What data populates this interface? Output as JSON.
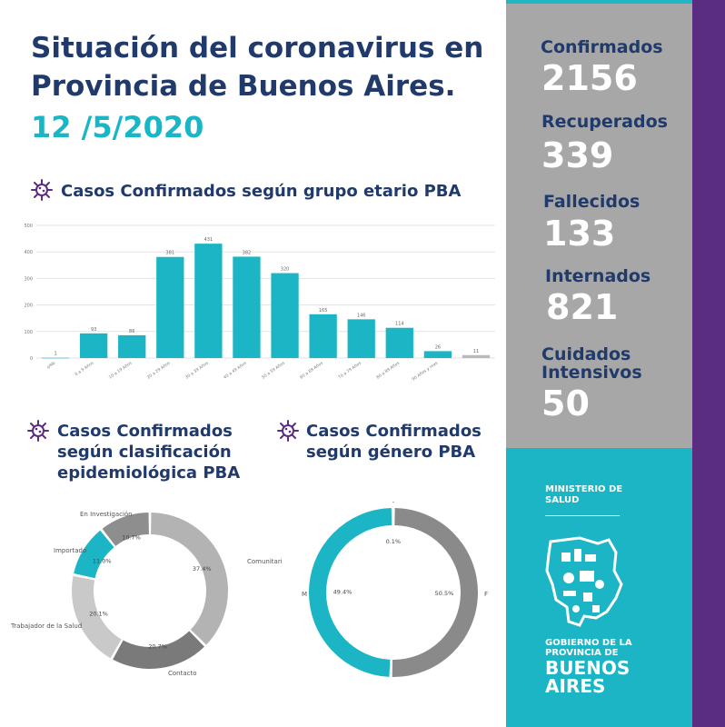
{
  "header": {
    "title": "Situación del coronavirus en Provincia de Buenos Aires.",
    "date": "12 /5/2020"
  },
  "stats": [
    {
      "label": "Confirmados",
      "value": "2156"
    },
    {
      "label": "Recuperados",
      "value": "339"
    },
    {
      "label": "Fallecidos",
      "value": "133"
    },
    {
      "label": "Internados",
      "value": "821"
    },
    {
      "label": "Cuidados Intensivos",
      "value": "50"
    }
  ],
  "ministry": {
    "line1": "MINISTERIO DE",
    "line2": "SALUD",
    "gob1": "GOBIERNO DE LA",
    "gob2": "PROVINCIA DE",
    "gob3": "BUENOS",
    "gob4": "AIRES"
  },
  "colors": {
    "teal": "#1bb5c5",
    "grey": "#a7a7a7",
    "purple": "#5a2d82",
    "navy": "#203a6b",
    "bar": "#1bb5c5"
  },
  "chart_data": [
    {
      "type": "bar",
      "title": "Casos Confirmados según grupo etario PBA",
      "categories": [
        "s/Nb",
        "0 a 9 Años",
        "10 a 19 Años",
        "20 a 29 Años",
        "30 a 39 Años",
        "40 a 49 Años",
        "50 a 59 Años",
        "60 a 69 Años",
        "70 a 79 Años",
        "80 a 89 Años",
        "90 Años y mas",
        ""
      ],
      "values": [
        1,
        93,
        86,
        381,
        431,
        382,
        320,
        165,
        146,
        114,
        26,
        11
      ],
      "ylim": [
        0,
        500
      ],
      "yticks": [
        "0",
        "100",
        "200",
        "300",
        "400",
        "500"
      ],
      "grid": true
    },
    {
      "type": "pie",
      "title": "Casos Confirmados según clasificación epidemiológica PBA",
      "slices": [
        {
          "label": "Comunitario",
          "value": 37.4,
          "pct": "37.4%",
          "color": "#b3b3b3"
        },
        {
          "label": "Contacto",
          "value": 20.7,
          "pct": "20.7%",
          "color": "#7a7a7a"
        },
        {
          "label": "Trabajador de la Salud",
          "value": 20.1,
          "pct": "20.1%",
          "color": "#c9c9c9"
        },
        {
          "label": "Importado",
          "value": 11.0,
          "pct": "11.0%",
          "color": "#1bb5c5"
        },
        {
          "label": "En Investigación",
          "value": 10.7,
          "pct": "10.7%",
          "color": "#8e8e8e"
        }
      ]
    },
    {
      "type": "pie",
      "title": "Casos Confirmados según género PBA",
      "slices": [
        {
          "label": "F",
          "value": 50.5,
          "pct": "50.5%",
          "color": "#8a8a8a"
        },
        {
          "label": "M",
          "value": 49.4,
          "pct": "49.4%",
          "color": "#1bb5c5"
        },
        {
          "label": "-",
          "value": 0.1,
          "pct": "0.1%",
          "color": "#b0b0b0"
        }
      ]
    }
  ]
}
